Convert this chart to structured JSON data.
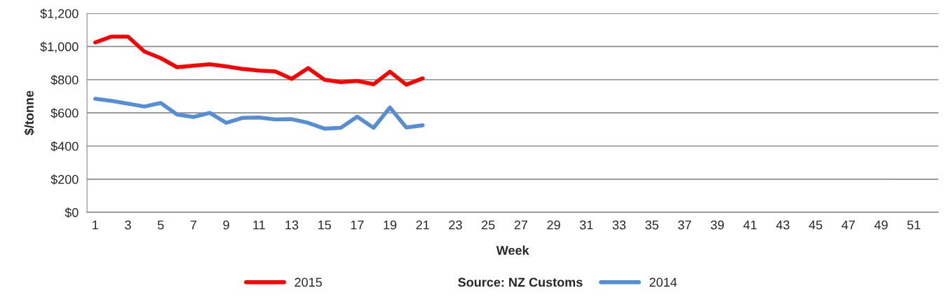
{
  "chart_data": {
    "type": "line",
    "xlabel": "Week",
    "ylabel": "$/tonne",
    "categories": [
      "1",
      null,
      "3",
      null,
      "5",
      null,
      "7",
      null,
      "9",
      null,
      "11",
      null,
      "13",
      null,
      "15",
      null,
      "17",
      null,
      "19",
      null,
      "21",
      null,
      "23",
      null,
      "25",
      null,
      "27",
      null,
      "29",
      null,
      "31",
      null,
      "33",
      null,
      "35",
      null,
      "37",
      null,
      "39",
      null,
      "41",
      null,
      "43",
      null,
      "45",
      null,
      "47",
      null,
      "49",
      null,
      "51",
      null
    ],
    "series": [
      {
        "name": "2015",
        "color": "#ff0000",
        "values": [
          1025,
          1060,
          1060,
          970,
          930,
          875,
          885,
          893,
          880,
          865,
          855,
          850,
          805,
          870,
          800,
          785,
          793,
          773,
          848,
          770,
          808,
          null,
          null,
          null,
          null,
          null,
          null,
          null,
          null,
          null,
          null,
          null,
          null,
          null,
          null,
          null,
          null,
          null,
          null,
          null,
          null,
          null,
          null,
          null,
          null,
          null,
          null,
          null,
          null,
          null,
          null,
          null
        ]
      },
      {
        "name": "2014",
        "color": "#558ed5",
        "values": [
          685,
          672,
          655,
          638,
          660,
          590,
          575,
          600,
          540,
          570,
          572,
          560,
          562,
          540,
          505,
          510,
          577,
          510,
          632,
          512,
          525,
          null,
          null,
          null,
          null,
          null,
          null,
          null,
          null,
          null,
          null,
          null,
          null,
          null,
          null,
          null,
          null,
          null,
          null,
          null,
          null,
          null,
          null,
          null,
          null,
          null,
          null,
          null,
          null,
          null,
          null,
          null
        ]
      }
    ],
    "ylim": [
      0,
      1200
    ],
    "yticks": [
      {
        "value": 0,
        "label": "$0"
      },
      {
        "value": 200,
        "label": "$200"
      },
      {
        "value": 400,
        "label": "$400"
      },
      {
        "value": 600,
        "label": "$600"
      },
      {
        "value": 800,
        "label": "$800"
      },
      {
        "value": 1000,
        "label": "$1,000"
      },
      {
        "value": 1200,
        "label": "$1,200"
      }
    ],
    "grid": "y",
    "legend": "bottom",
    "marker": "none",
    "line_style": "solid",
    "annotations": [
      "Source: NZ Customs"
    ]
  }
}
